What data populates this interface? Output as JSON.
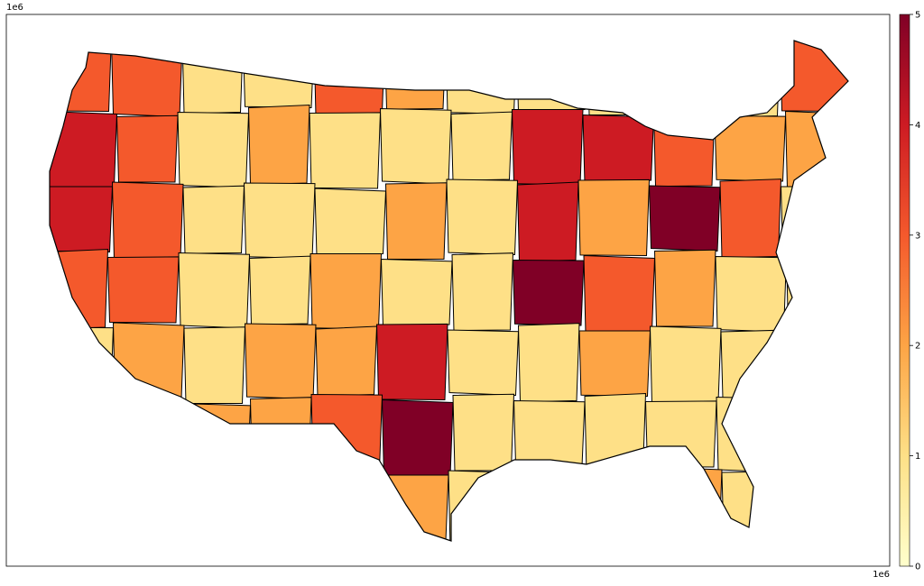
{
  "chart_data": {
    "type": "choropleth",
    "x_offset_label": "1e6",
    "y_offset_label": "1e6",
    "colorbar": {
      "lim": [
        0,
        5
      ],
      "ticks": [
        0,
        1,
        2,
        3,
        4,
        5
      ],
      "colors": [
        "#ffffcc",
        "#fee087",
        "#fda445",
        "#f4592c",
        "#cd1b23",
        "#800026"
      ]
    },
    "regions": {
      "columns": 12,
      "values": [
        3,
        3,
        1,
        1,
        3,
        2,
        1,
        1,
        1,
        1,
        1,
        3,
        4,
        3,
        1,
        2,
        1,
        1,
        1,
        4,
        4,
        3,
        2,
        2,
        4,
        3,
        1,
        1,
        1,
        2,
        1,
        4,
        2,
        5,
        3,
        1,
        3,
        3,
        1,
        1,
        2,
        1,
        1,
        5,
        3,
        2,
        1,
        1,
        1,
        2,
        1,
        2,
        2,
        4,
        1,
        1,
        2,
        1,
        1,
        1,
        1,
        1,
        2,
        2,
        3,
        5,
        1,
        1,
        1,
        1,
        1,
        1,
        1,
        1,
        1,
        1,
        1,
        2,
        1,
        1,
        1,
        2,
        1,
        1
      ]
    }
  }
}
